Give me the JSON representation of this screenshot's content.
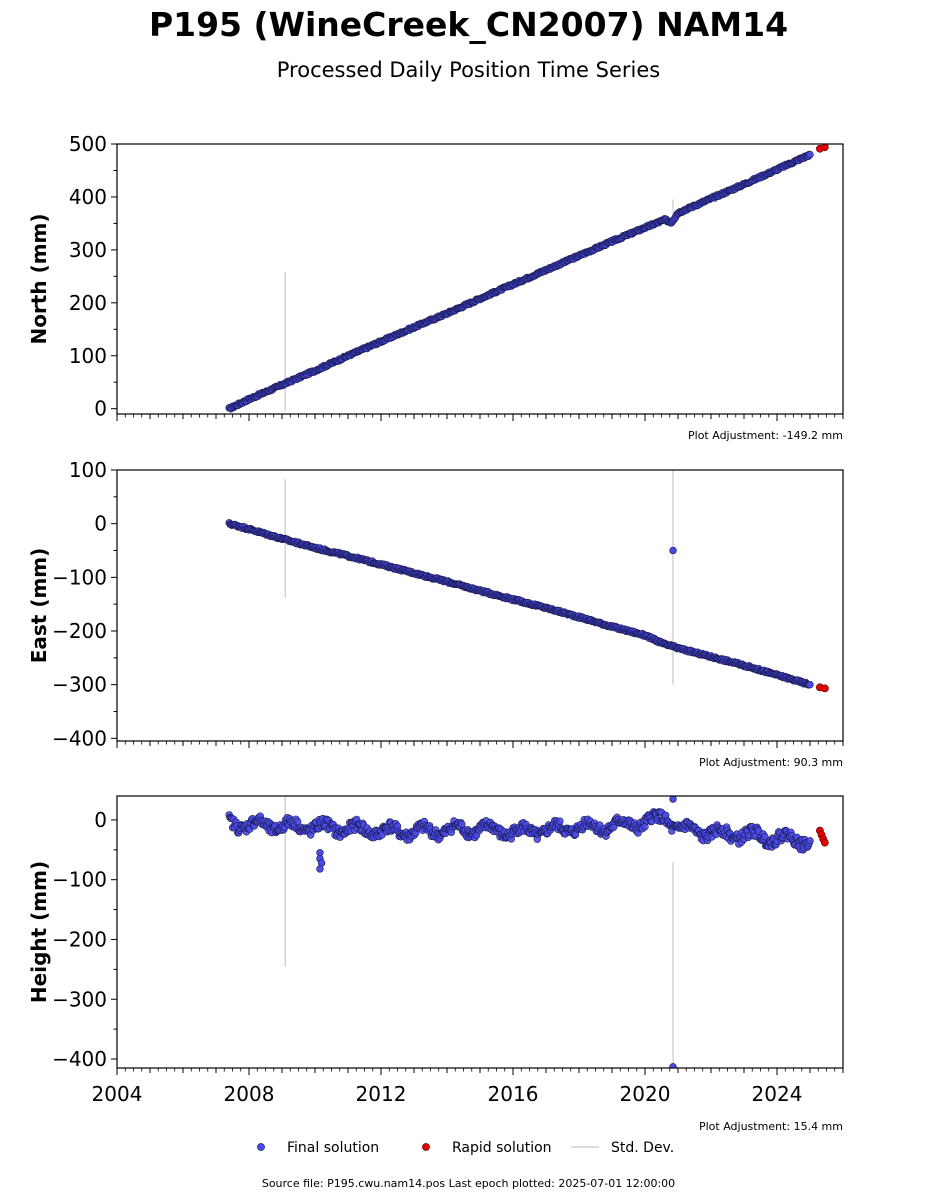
{
  "title": "P195 (WineCreek_CN2007) NAM14",
  "subtitle": "Processed Daily Position Time Series",
  "footer": "Source file: P195.cwu.nam14.pos  Last epoch plotted: 2025-07-01 12:00:00",
  "legend": {
    "placement": "bottom-center",
    "items": [
      {
        "label": "Final solution",
        "color": "#4a4ae8",
        "marker": "dot"
      },
      {
        "label": "Rapid solution",
        "color": "#e00000",
        "marker": "dot"
      },
      {
        "label": "Std. Dev.",
        "color": "#d0d0d0",
        "marker": "line"
      }
    ]
  },
  "colors": {
    "final": "#4a4ae8",
    "final_edge": "#1a1a50",
    "rapid": "#e00000",
    "stddev": "#d3d3d3"
  },
  "chart_data": [
    {
      "type": "scatter",
      "ylabel": "North (mm)",
      "adjustment": "Plot Adjustment: -149.2 mm",
      "xlim": [
        2004.0,
        2026.0
      ],
      "ylim": [
        -10,
        500
      ],
      "yticks": [
        0,
        100,
        200,
        300,
        400,
        500
      ],
      "show_xticklabels": false,
      "final_series": {
        "name": "Final solution",
        "x": [
          2007.4,
          2008.0,
          2009.0,
          2010.0,
          2011.0,
          2012.0,
          2013.0,
          2014.0,
          2015.0,
          2016.0,
          2017.0,
          2018.0,
          2019.0,
          2020.0,
          2020.6,
          2020.8,
          2021.0,
          2022.0,
          2023.0,
          2024.0,
          2025.0
        ],
        "y": [
          0,
          18,
          45,
          72,
          100,
          127,
          154,
          180,
          208,
          235,
          262,
          289,
          316,
          342,
          357,
          352,
          370,
          397,
          424,
          452,
          480
        ]
      },
      "rapid_series": {
        "name": "Rapid solution",
        "x": [
          2025.3,
          2025.45
        ],
        "y": [
          491,
          494
        ]
      },
      "stddev_bars": [
        {
          "x": 2009.1,
          "ymin": -5,
          "ymax": 258
        },
        {
          "x": 2020.85,
          "ymin": 345,
          "ymax": 395
        }
      ]
    },
    {
      "type": "scatter",
      "ylabel": "East (mm)",
      "adjustment": "Plot Adjustment: 90.3 mm",
      "xlim": [
        2004.0,
        2026.0
      ],
      "ylim": [
        -405,
        100
      ],
      "yticks": [
        -400,
        -300,
        -200,
        -100,
        0,
        100
      ],
      "show_xticklabels": false,
      "final_series": {
        "name": "Final solution",
        "x": [
          2007.4,
          2008.0,
          2009.0,
          2010.0,
          2011.0,
          2012.0,
          2013.0,
          2014.0,
          2015.0,
          2016.0,
          2017.0,
          2018.0,
          2019.0,
          2020.0,
          2020.6,
          2020.8,
          2021.0,
          2022.0,
          2023.0,
          2024.0,
          2025.0
        ],
        "y": [
          0,
          -10,
          -28,
          -45,
          -60,
          -76,
          -92,
          -108,
          -125,
          -141,
          -157,
          -174,
          -192,
          -208,
          -225,
          -228,
          -232,
          -248,
          -264,
          -282,
          -300
        ],
        "outliers": [
          {
            "x": 2020.85,
            "y": -50
          }
        ]
      },
      "rapid_series": {
        "name": "Rapid solution",
        "x": [
          2025.3,
          2025.45
        ],
        "y": [
          -305,
          -307
        ]
      },
      "stddev_bars": [
        {
          "x": 2009.1,
          "ymin": -138,
          "ymax": 83
        },
        {
          "x": 2020.85,
          "ymin": -300,
          "ymax": 100
        }
      ]
    },
    {
      "type": "scatter",
      "ylabel": "Height (mm)",
      "adjustment": "Plot Adjustment: 15.4 mm",
      "xlim": [
        2004.0,
        2026.0
      ],
      "ylim": [
        -415,
        40
      ],
      "yticks": [
        -400,
        -300,
        -200,
        -100,
        0
      ],
      "xticks": [
        2004,
        2008,
        2012,
        2016,
        2020,
        2024
      ],
      "show_xticklabels": true,
      "final_series": {
        "name": "Final solution",
        "x": [
          2007.4,
          2008.0,
          2009.0,
          2010.0,
          2011.0,
          2012.0,
          2013.0,
          2014.0,
          2015.0,
          2016.0,
          2017.0,
          2018.0,
          2019.0,
          2020.0,
          2020.6,
          2021.0,
          2022.0,
          2023.0,
          2024.0,
          2025.0
        ],
        "y": [
          -5,
          -8,
          -10,
          -12,
          -15,
          -18,
          -20,
          -17,
          -15,
          -20,
          -18,
          -12,
          -10,
          -5,
          5,
          -15,
          -22,
          -25,
          -30,
          -35
        ],
        "outliers": [
          {
            "x": 2010.15,
            "y": -55
          },
          {
            "x": 2010.15,
            "y": -65
          },
          {
            "x": 2010.2,
            "y": -72
          },
          {
            "x": 2010.15,
            "y": -82
          },
          {
            "x": 2020.85,
            "y": 35
          },
          {
            "x": 2020.85,
            "y": -413
          }
        ]
      },
      "rapid_series": {
        "name": "Rapid solution",
        "x": [
          2025.3,
          2025.35,
          2025.4,
          2025.45
        ],
        "y": [
          -18,
          -25,
          -32,
          -38
        ]
      },
      "stddev_bars": [
        {
          "x": 2009.1,
          "ymin": -245,
          "ymax": 40
        },
        {
          "x": 2020.85,
          "ymin": -415,
          "ymax": -70
        }
      ]
    }
  ]
}
